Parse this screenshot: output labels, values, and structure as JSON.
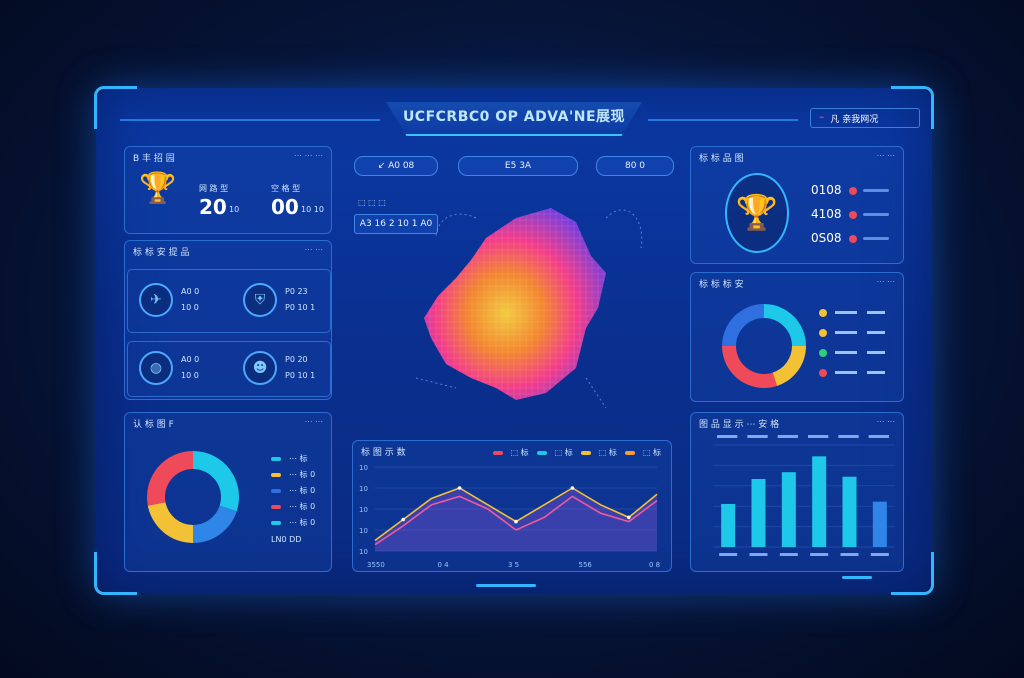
{
  "header": {
    "title": "UCFCRBC0 OP ADVA'NE展现",
    "status": "凡 亲我网况"
  },
  "left_top": {
    "title": "B 丰 招 园",
    "more": "⋯ ⋯ ⋯",
    "metric_a": {
      "label": "网 路 型",
      "value": "20",
      "unit": "10"
    },
    "metric_b": {
      "label": "空 格 型",
      "value": "00",
      "unit": "10 10"
    }
  },
  "left_mid": {
    "title": "标 标 安 提 品",
    "more": "⋯ ⋯",
    "items": [
      {
        "icon": "bird-icon",
        "label": "A0 0",
        "value": "10 0"
      },
      {
        "icon": "shield-icon",
        "label": "P0 23",
        "value": "P0 10 1"
      },
      {
        "icon": "globe-icon",
        "label": "A0 0",
        "value": "10 0"
      },
      {
        "icon": "person-icon",
        "label": "P0 20",
        "value": "P0 10 1"
      }
    ]
  },
  "left_bottom": {
    "title": "认 标 图 F",
    "more": "⋯ ⋯",
    "legend": [
      "⋯ 标",
      "⋯ 标 0",
      "⋯ 标 0",
      "⋯ 标 0",
      "⋯ 标 0"
    ],
    "footer": "LN0 DD"
  },
  "center": {
    "tabs": [
      "↙ A0 08",
      "E5 3A",
      "80 0"
    ],
    "sub_tab": "A3 16 2 10 1 A0",
    "map_legend": "⬚ ⬚ ⬚"
  },
  "line_chart": {
    "title": "标 图 示 数",
    "legend": [
      "⬚ 标",
      "⬚ 标",
      "⬚ 标",
      "⬚ 标"
    ]
  },
  "right_top": {
    "title": "标 标 品 图",
    "more": "⋯ ⋯",
    "rows": [
      {
        "label": "0108"
      },
      {
        "label": "4108"
      },
      {
        "label": "0S08"
      }
    ]
  },
  "right_mid": {
    "title": "标 标 标 安",
    "more": "⋯ ⋯"
  },
  "right_bottom": {
    "title": "图 品 显 示 ⋯ 安 格",
    "more": "⋯ ⋯"
  },
  "colors": {
    "accent": "#33b6ff",
    "cyan": "#1ec8e8",
    "yellow": "#f3c135",
    "red": "#ef4a5a",
    "blue": "#2f6fe0",
    "orange": "#ff9a2e"
  },
  "chart_data": [
    {
      "type": "pie",
      "name": "left-donut",
      "slices": [
        {
          "label": "",
          "value": 30,
          "color": "#1ec8e8"
        },
        {
          "label": "",
          "value": 20,
          "color": "#2f86e8"
        },
        {
          "label": "",
          "value": 22,
          "color": "#f3c135"
        },
        {
          "label": "",
          "value": 28,
          "color": "#ef4a5a"
        }
      ]
    },
    {
      "type": "line",
      "name": "center-line",
      "x": [
        0,
        1,
        2,
        3,
        4,
        5,
        6,
        7,
        8,
        9,
        10
      ],
      "series": [
        {
          "values": [
            5,
            15,
            25,
            30,
            22,
            14,
            22,
            30,
            22,
            16,
            27
          ],
          "color": "#f3c135"
        },
        {
          "values": [
            3,
            12,
            22,
            26,
            20,
            10,
            16,
            26,
            18,
            14,
            24
          ],
          "color": "#ef5a9a"
        }
      ],
      "ylim": [
        0,
        40
      ],
      "yticks": [
        "10",
        "10",
        "10",
        "10",
        "10"
      ],
      "xticks": [
        "3550",
        "0 4",
        "3 5",
        "556",
        "0 8"
      ]
    },
    {
      "type": "pie",
      "name": "right-donut",
      "slices": [
        {
          "label": "",
          "value": 25,
          "color": "#1ec8e8"
        },
        {
          "label": "",
          "value": 20,
          "color": "#f3c135"
        },
        {
          "label": "",
          "value": 30,
          "color": "#ef4a5a"
        },
        {
          "label": "",
          "value": 25,
          "color": "#2f6fe0"
        }
      ]
    },
    {
      "type": "bar",
      "name": "right-bars",
      "categories": [
        "",
        "",
        "",
        "",
        "",
        ""
      ],
      "values": [
        38,
        60,
        66,
        80,
        62,
        40
      ],
      "ylim": [
        0,
        90
      ],
      "xticks": [
        "",
        "",
        "",
        "",
        "",
        ""
      ]
    }
  ]
}
